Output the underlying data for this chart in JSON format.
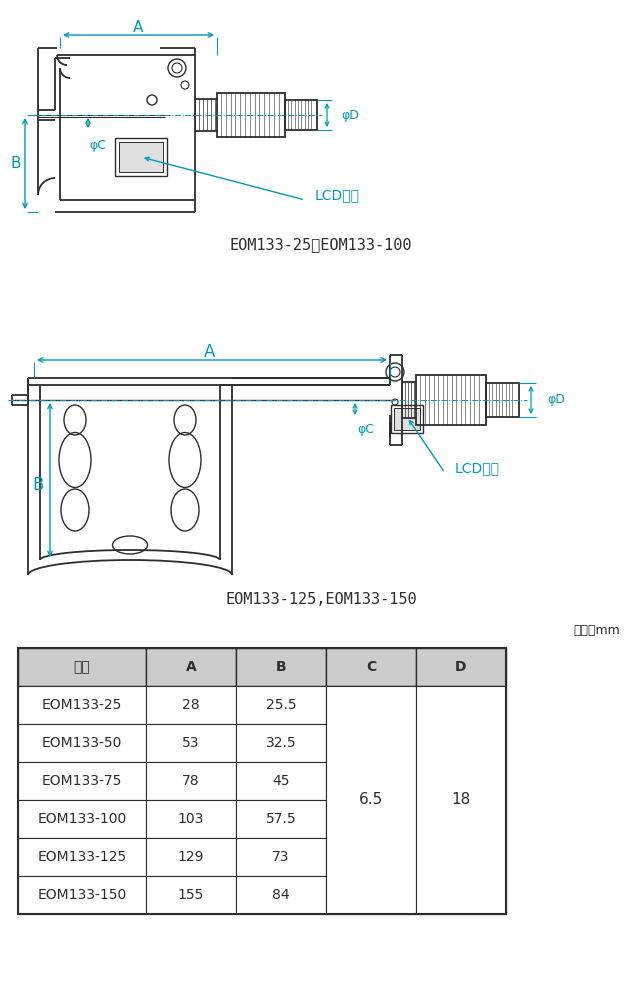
{
  "bg_color": "#ffffff",
  "drawing_color": "#2d2d2d",
  "dim_color": "#0099bb",
  "label1": "EOM133-25～EOM133-100",
  "label2": "EOM133-125,EOM133-150",
  "lcd_label": "LCD表示",
  "unit_label": "単位：mm",
  "table_header": [
    "品番",
    "A",
    "B",
    "C",
    "D"
  ],
  "table_data": [
    [
      "EOM133-25",
      "28",
      "25.5"
    ],
    [
      "EOM133-50",
      "53",
      "32.5"
    ],
    [
      "EOM133-75",
      "78",
      "45"
    ],
    [
      "EOM133-100",
      "103",
      "57.5"
    ],
    [
      "EOM133-125",
      "129",
      "73"
    ],
    [
      "EOM133-150",
      "155",
      "84"
    ]
  ],
  "merged_c": "6.5",
  "merged_d": "18",
  "header_bg": "#cccccc",
  "row_bg": "#ffffff"
}
